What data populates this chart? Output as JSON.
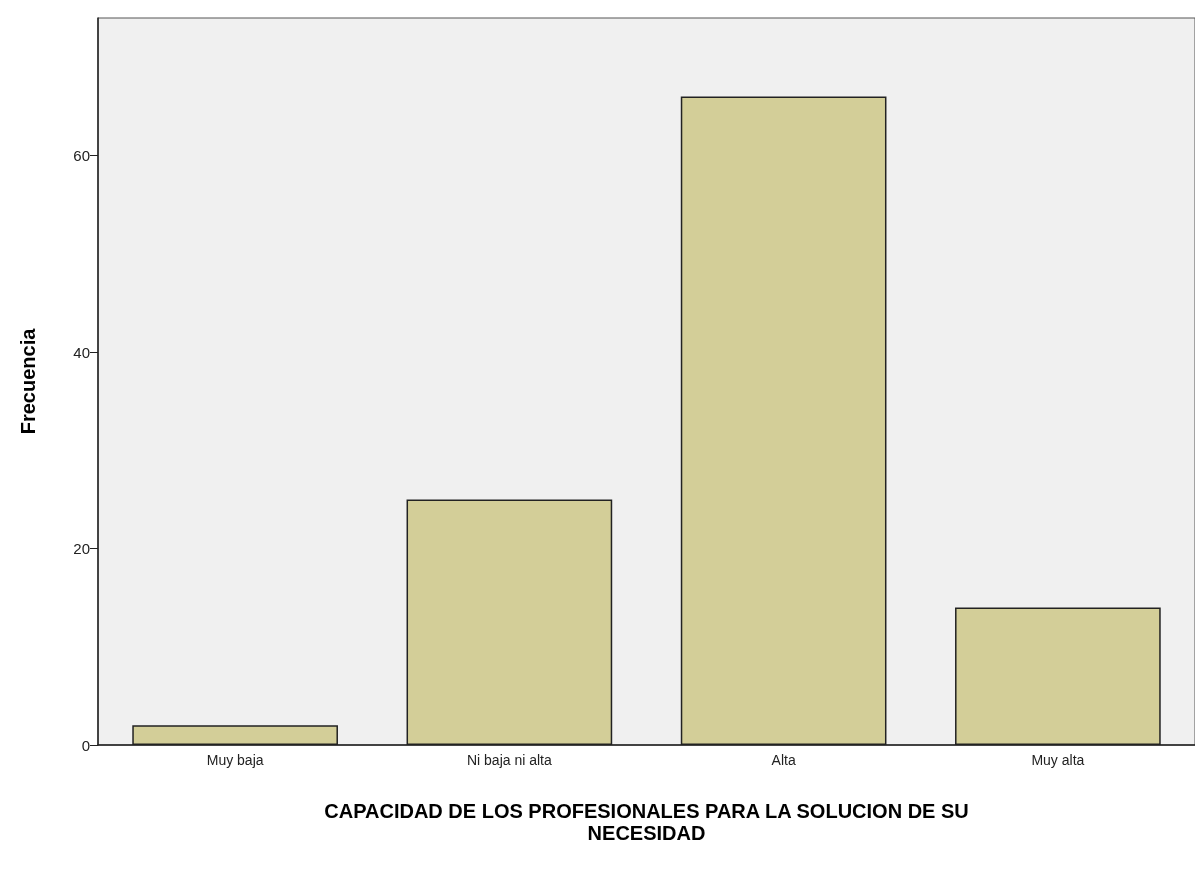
{
  "chart_data": {
    "type": "bar",
    "xlabel": "CAPACIDAD DE LOS PROFESIONALES PARA LA SOLUCION DE SU\nNECESIDAD",
    "ylabel": "Frecuencia",
    "categories": [
      "Muy baja",
      "Ni baja ni alta",
      "Alta",
      "Muy alta"
    ],
    "values": [
      2,
      25,
      66,
      14
    ],
    "color": "#d3ce98",
    "ylim": [
      0,
      74
    ],
    "yticks": [
      0,
      20,
      40,
      60
    ],
    "grid": false
  }
}
